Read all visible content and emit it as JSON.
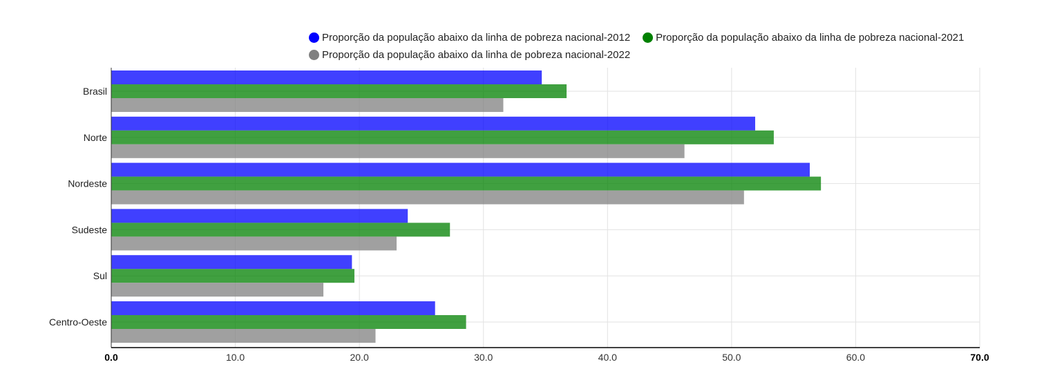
{
  "chart_data": {
    "type": "bar",
    "orientation": "horizontal",
    "categories": [
      "Brasil",
      "Norte",
      "Nordeste",
      "Sudeste",
      "Sul",
      "Centro-Oeste"
    ],
    "series": [
      {
        "name": "Proporção da população abaixo da linha de pobreza nacional-2012",
        "color": "#0000ff",
        "values": [
          34.7,
          51.9,
          56.3,
          23.9,
          19.4,
          26.1
        ]
      },
      {
        "name": "Proporção da população abaixo da linha de pobreza nacional-2021",
        "color": "#008000",
        "values": [
          36.7,
          53.4,
          57.2,
          27.3,
          19.6,
          28.6
        ]
      },
      {
        "name": "Proporção da população abaixo da linha de pobreza nacional-2022",
        "color": "#808080",
        "values": [
          31.6,
          46.2,
          51.0,
          23.0,
          17.1,
          21.3
        ]
      }
    ],
    "xlim": [
      0,
      70
    ],
    "xticks": [
      "0.0",
      "10.0",
      "20.0",
      "30.0",
      "40.0",
      "50.0",
      "60.0",
      "70.0"
    ],
    "grid": true,
    "legend_position": "top"
  }
}
